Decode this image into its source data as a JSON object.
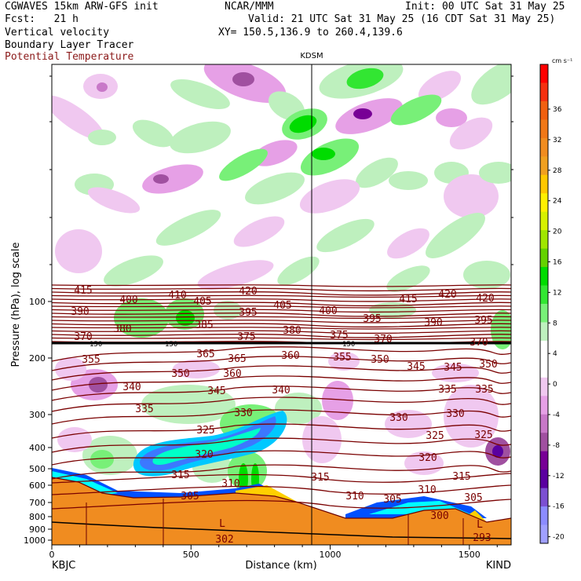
{
  "header": {
    "model": "CGWAVES 15km ARW-GFS init",
    "forecast": "Fcst:   21 h",
    "field1": "Vertical velocity",
    "field2": "Boundary Layer Tracer",
    "field3": "Potential Temperature",
    "org": "NCAR/MMM",
    "init": "Init: 00 UTC Sat 31 May 25",
    "valid": "Valid: 21 UTC Sat 31 May 25 (16 CDT Sat 31 May 25)",
    "xy": "XY= 150.5,136.9 to 260.4,139.6",
    "field3_color": "#8b1a1a"
  },
  "chart_data": {
    "type": "heatmap",
    "title": "",
    "xlabel": "Distance (km)",
    "ylabel": "Pressure (hPa), log scale",
    "xlim": [
      0,
      1650
    ],
    "x_ticks": [
      "0",
      "500",
      "1000",
      "1500"
    ],
    "y_ticks": [
      "100",
      "200",
      "300",
      "400",
      "500",
      "600",
      "700",
      "800",
      "900",
      "1000"
    ],
    "y_scale": "log",
    "x_start_label": "KBJC",
    "x_end_label": "KIND",
    "marker_label": "KDSM",
    "marker_x_km": 935,
    "tropopause_label": "150",
    "colorbar": {
      "unit": "cm s⁻¹",
      "labels": [
        "36",
        "32",
        "28",
        "24",
        "20",
        "16",
        "12",
        "8",
        "4",
        "0",
        "-4",
        "-8",
        "-12",
        "-16",
        "-20"
      ],
      "colors": [
        "#ff0000",
        "#f53010",
        "#f06010",
        "#f07818",
        "#f08c20",
        "#f0a020",
        "#ffc800",
        "#fff000",
        "#d7f000",
        "#a0e600",
        "#64d200",
        "#00dc00",
        "#32e632",
        "#78f078",
        "#bef0be",
        "#ffffff",
        "#ffffff",
        "#f0c8f0",
        "#e6a0e6",
        "#c878c8",
        "#a050a0",
        "#780096",
        "#5a00a0",
        "#7c50d2",
        "#8c8cff",
        "#a0a0ff"
      ]
    },
    "theta_labels": [
      "415",
      "410",
      "420",
      "400",
      "405",
      "405",
      "415",
      "420",
      "420",
      "390",
      "395",
      "400",
      "395",
      "390",
      "395",
      "380",
      "385",
      "380",
      "375",
      "370",
      "375",
      "370",
      "365",
      "370",
      "355",
      "365",
      "360",
      "360",
      "355",
      "350",
      "345",
      "345",
      "350",
      "350",
      "340",
      "345",
      "340",
      "335",
      "335",
      "335",
      "330",
      "330",
      "330",
      "325",
      "325",
      "325",
      "320",
      "320",
      "315",
      "315",
      "315",
      "310",
      "310",
      "310",
      "305",
      "305",
      "305",
      "300",
      "302",
      "293",
      "L",
      "L"
    ]
  }
}
